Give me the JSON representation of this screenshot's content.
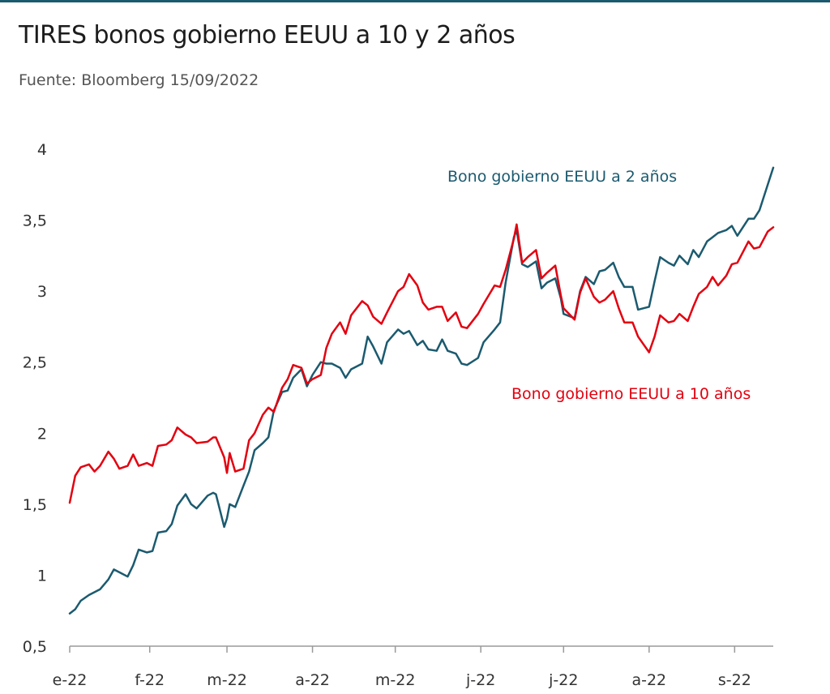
{
  "title": "TIRES bonos gobierno EEUU a 10 y 2 años",
  "subtitle": "Fuente: Bloomberg 15/09/2022",
  "colors": {
    "accent": "#1b5a6f",
    "bond2": "#1b5a6f",
    "bond10": "#e3000f"
  },
  "chart_data": {
    "type": "line",
    "title": "TIRES bonos gobierno EEUU a 10 y 2 años",
    "xlabel": "",
    "ylabel": "",
    "ylim": [
      0.5,
      4
    ],
    "xlim": [
      "2022-01-03",
      "2022-09-15"
    ],
    "grid": false,
    "legend": "inline labels",
    "x_ticks": [
      {
        "date": "2022-01-03",
        "label": "e-22"
      },
      {
        "date": "2022-02-01",
        "label": "f-22"
      },
      {
        "date": "2022-03-01",
        "label": "m-22"
      },
      {
        "date": "2022-04-01",
        "label": "a-22"
      },
      {
        "date": "2022-05-01",
        "label": "m-22"
      },
      {
        "date": "2022-06-01",
        "label": "j-22"
      },
      {
        "date": "2022-07-01",
        "label": "j-22"
      },
      {
        "date": "2022-08-01",
        "label": "a-22"
      },
      {
        "date": "2022-09-01",
        "label": "s-22"
      }
    ],
    "y_ticks": [
      {
        "value": 0.5,
        "label": "0,5"
      },
      {
        "value": 1,
        "label": "1"
      },
      {
        "value": 1.5,
        "label": "1,5"
      },
      {
        "value": 2,
        "label": "2"
      },
      {
        "value": 2.5,
        "label": "2,5"
      },
      {
        "value": 3,
        "label": "3"
      },
      {
        "value": 3.5,
        "label": "3,5"
      },
      {
        "value": 4,
        "label": "4"
      }
    ],
    "series": [
      {
        "name": "Bono gobierno EEUU a 2 años",
        "color": "#1b5a6f",
        "points": [
          [
            "2022-01-03",
            0.73
          ],
          [
            "2022-01-05",
            0.76
          ],
          [
            "2022-01-07",
            0.82
          ],
          [
            "2022-01-10",
            0.86
          ],
          [
            "2022-01-12",
            0.88
          ],
          [
            "2022-01-14",
            0.9
          ],
          [
            "2022-01-17",
            0.97
          ],
          [
            "2022-01-19",
            1.04
          ],
          [
            "2022-01-21",
            1.02
          ],
          [
            "2022-01-24",
            0.99
          ],
          [
            "2022-01-26",
            1.07
          ],
          [
            "2022-01-28",
            1.18
          ],
          [
            "2022-01-31",
            1.16
          ],
          [
            "2022-02-02",
            1.17
          ],
          [
            "2022-02-04",
            1.3
          ],
          [
            "2022-02-07",
            1.31
          ],
          [
            "2022-02-09",
            1.36
          ],
          [
            "2022-02-11",
            1.49
          ],
          [
            "2022-02-14",
            1.57
          ],
          [
            "2022-02-16",
            1.5
          ],
          [
            "2022-02-18",
            1.47
          ],
          [
            "2022-02-22",
            1.56
          ],
          [
            "2022-02-24",
            1.58
          ],
          [
            "2022-02-25",
            1.57
          ],
          [
            "2022-02-28",
            1.34
          ],
          [
            "2022-03-01",
            1.4
          ],
          [
            "2022-03-02",
            1.5
          ],
          [
            "2022-03-04",
            1.48
          ],
          [
            "2022-03-07",
            1.63
          ],
          [
            "2022-03-09",
            1.73
          ],
          [
            "2022-03-11",
            1.88
          ],
          [
            "2022-03-14",
            1.93
          ],
          [
            "2022-03-16",
            1.97
          ],
          [
            "2022-03-18",
            2.16
          ],
          [
            "2022-03-21",
            2.29
          ],
          [
            "2022-03-23",
            2.3
          ],
          [
            "2022-03-25",
            2.39
          ],
          [
            "2022-03-28",
            2.45
          ],
          [
            "2022-03-30",
            2.33
          ],
          [
            "2022-04-01",
            2.41
          ],
          [
            "2022-04-04",
            2.5
          ],
          [
            "2022-04-06",
            2.49
          ],
          [
            "2022-04-08",
            2.49
          ],
          [
            "2022-04-11",
            2.46
          ],
          [
            "2022-04-13",
            2.39
          ],
          [
            "2022-04-15",
            2.45
          ],
          [
            "2022-04-19",
            2.49
          ],
          [
            "2022-04-21",
            2.68
          ],
          [
            "2022-04-23",
            2.61
          ],
          [
            "2022-04-26",
            2.49
          ],
          [
            "2022-04-28",
            2.64
          ],
          [
            "2022-05-02",
            2.73
          ],
          [
            "2022-05-04",
            2.7
          ],
          [
            "2022-05-06",
            2.72
          ],
          [
            "2022-05-09",
            2.62
          ],
          [
            "2022-05-11",
            2.65
          ],
          [
            "2022-05-13",
            2.59
          ],
          [
            "2022-05-16",
            2.58
          ],
          [
            "2022-05-18",
            2.66
          ],
          [
            "2022-05-20",
            2.58
          ],
          [
            "2022-05-23",
            2.56
          ],
          [
            "2022-05-25",
            2.49
          ],
          [
            "2022-05-27",
            2.48
          ],
          [
            "2022-05-31",
            2.53
          ],
          [
            "2022-06-02",
            2.64
          ],
          [
            "2022-06-06",
            2.73
          ],
          [
            "2022-06-08",
            2.78
          ],
          [
            "2022-06-10",
            3.06
          ],
          [
            "2022-06-13",
            3.38
          ],
          [
            "2022-06-14",
            3.43
          ],
          [
            "2022-06-16",
            3.19
          ],
          [
            "2022-06-18",
            3.17
          ],
          [
            "2022-06-21",
            3.21
          ],
          [
            "2022-06-23",
            3.02
          ],
          [
            "2022-06-25",
            3.06
          ],
          [
            "2022-06-28",
            3.09
          ],
          [
            "2022-06-30",
            2.95
          ],
          [
            "2022-07-01",
            2.84
          ],
          [
            "2022-07-05",
            2.81
          ],
          [
            "2022-07-07",
            3.0
          ],
          [
            "2022-07-09",
            3.1
          ],
          [
            "2022-07-12",
            3.05
          ],
          [
            "2022-07-14",
            3.14
          ],
          [
            "2022-07-16",
            3.15
          ],
          [
            "2022-07-19",
            3.2
          ],
          [
            "2022-07-21",
            3.1
          ],
          [
            "2022-07-23",
            3.03
          ],
          [
            "2022-07-26",
            3.03
          ],
          [
            "2022-07-28",
            2.87
          ],
          [
            "2022-08-01",
            2.89
          ],
          [
            "2022-08-03",
            3.07
          ],
          [
            "2022-08-05",
            3.24
          ],
          [
            "2022-08-08",
            3.2
          ],
          [
            "2022-08-10",
            3.18
          ],
          [
            "2022-08-12",
            3.25
          ],
          [
            "2022-08-15",
            3.19
          ],
          [
            "2022-08-17",
            3.29
          ],
          [
            "2022-08-19",
            3.24
          ],
          [
            "2022-08-22",
            3.35
          ],
          [
            "2022-08-24",
            3.38
          ],
          [
            "2022-08-26",
            3.41
          ],
          [
            "2022-08-29",
            3.43
          ],
          [
            "2022-08-31",
            3.46
          ],
          [
            "2022-09-02",
            3.39
          ],
          [
            "2022-09-06",
            3.51
          ],
          [
            "2022-09-08",
            3.51
          ],
          [
            "2022-09-10",
            3.57
          ],
          [
            "2022-09-13",
            3.75
          ],
          [
            "2022-09-15",
            3.87
          ]
        ]
      },
      {
        "name": "Bono gobierno EEUU a 10 años",
        "color": "#e3000f",
        "points": [
          [
            "2022-01-03",
            1.51
          ],
          [
            "2022-01-05",
            1.7
          ],
          [
            "2022-01-07",
            1.76
          ],
          [
            "2022-01-10",
            1.78
          ],
          [
            "2022-01-12",
            1.73
          ],
          [
            "2022-01-14",
            1.77
          ],
          [
            "2022-01-17",
            1.87
          ],
          [
            "2022-01-19",
            1.82
          ],
          [
            "2022-01-21",
            1.75
          ],
          [
            "2022-01-24",
            1.77
          ],
          [
            "2022-01-26",
            1.85
          ],
          [
            "2022-01-28",
            1.77
          ],
          [
            "2022-01-31",
            1.79
          ],
          [
            "2022-02-02",
            1.77
          ],
          [
            "2022-02-04",
            1.91
          ],
          [
            "2022-02-07",
            1.92
          ],
          [
            "2022-02-09",
            1.95
          ],
          [
            "2022-02-11",
            2.04
          ],
          [
            "2022-02-14",
            1.99
          ],
          [
            "2022-02-16",
            1.97
          ],
          [
            "2022-02-18",
            1.93
          ],
          [
            "2022-02-22",
            1.94
          ],
          [
            "2022-02-24",
            1.97
          ],
          [
            "2022-02-25",
            1.97
          ],
          [
            "2022-02-28",
            1.83
          ],
          [
            "2022-03-01",
            1.72
          ],
          [
            "2022-03-02",
            1.86
          ],
          [
            "2022-03-04",
            1.73
          ],
          [
            "2022-03-07",
            1.75
          ],
          [
            "2022-03-09",
            1.95
          ],
          [
            "2022-03-11",
            2.0
          ],
          [
            "2022-03-14",
            2.13
          ],
          [
            "2022-03-16",
            2.18
          ],
          [
            "2022-03-18",
            2.15
          ],
          [
            "2022-03-21",
            2.32
          ],
          [
            "2022-03-23",
            2.38
          ],
          [
            "2022-03-25",
            2.48
          ],
          [
            "2022-03-28",
            2.46
          ],
          [
            "2022-03-30",
            2.35
          ],
          [
            "2022-04-01",
            2.38
          ],
          [
            "2022-04-04",
            2.41
          ],
          [
            "2022-04-06",
            2.6
          ],
          [
            "2022-04-08",
            2.7
          ],
          [
            "2022-04-11",
            2.78
          ],
          [
            "2022-04-13",
            2.7
          ],
          [
            "2022-04-15",
            2.83
          ],
          [
            "2022-04-19",
            2.93
          ],
          [
            "2022-04-21",
            2.9
          ],
          [
            "2022-04-23",
            2.82
          ],
          [
            "2022-04-26",
            2.77
          ],
          [
            "2022-04-28",
            2.85
          ],
          [
            "2022-05-02",
            3.0
          ],
          [
            "2022-05-04",
            3.03
          ],
          [
            "2022-05-06",
            3.12
          ],
          [
            "2022-05-09",
            3.04
          ],
          [
            "2022-05-11",
            2.92
          ],
          [
            "2022-05-13",
            2.87
          ],
          [
            "2022-05-16",
            2.89
          ],
          [
            "2022-05-18",
            2.89
          ],
          [
            "2022-05-20",
            2.79
          ],
          [
            "2022-05-23",
            2.85
          ],
          [
            "2022-05-25",
            2.75
          ],
          [
            "2022-05-27",
            2.74
          ],
          [
            "2022-05-31",
            2.84
          ],
          [
            "2022-06-02",
            2.91
          ],
          [
            "2022-06-06",
            3.04
          ],
          [
            "2022-06-08",
            3.03
          ],
          [
            "2022-06-10",
            3.15
          ],
          [
            "2022-06-13",
            3.37
          ],
          [
            "2022-06-14",
            3.47
          ],
          [
            "2022-06-16",
            3.2
          ],
          [
            "2022-06-18",
            3.24
          ],
          [
            "2022-06-21",
            3.29
          ],
          [
            "2022-06-23",
            3.09
          ],
          [
            "2022-06-25",
            3.13
          ],
          [
            "2022-06-28",
            3.18
          ],
          [
            "2022-06-30",
            2.97
          ],
          [
            "2022-07-01",
            2.88
          ],
          [
            "2022-07-05",
            2.8
          ],
          [
            "2022-07-07",
            2.99
          ],
          [
            "2022-07-09",
            3.09
          ],
          [
            "2022-07-12",
            2.96
          ],
          [
            "2022-07-14",
            2.92
          ],
          [
            "2022-07-16",
            2.94
          ],
          [
            "2022-07-19",
            3.0
          ],
          [
            "2022-07-21",
            2.88
          ],
          [
            "2022-07-23",
            2.78
          ],
          [
            "2022-07-26",
            2.78
          ],
          [
            "2022-07-28",
            2.68
          ],
          [
            "2022-08-01",
            2.57
          ],
          [
            "2022-08-03",
            2.68
          ],
          [
            "2022-08-05",
            2.83
          ],
          [
            "2022-08-08",
            2.78
          ],
          [
            "2022-08-10",
            2.79
          ],
          [
            "2022-08-12",
            2.84
          ],
          [
            "2022-08-15",
            2.79
          ],
          [
            "2022-08-17",
            2.89
          ],
          [
            "2022-08-19",
            2.98
          ],
          [
            "2022-08-22",
            3.03
          ],
          [
            "2022-08-24",
            3.1
          ],
          [
            "2022-08-26",
            3.04
          ],
          [
            "2022-08-29",
            3.11
          ],
          [
            "2022-08-31",
            3.19
          ],
          [
            "2022-09-02",
            3.2
          ],
          [
            "2022-09-06",
            3.35
          ],
          [
            "2022-09-08",
            3.3
          ],
          [
            "2022-09-10",
            3.31
          ],
          [
            "2022-09-13",
            3.42
          ],
          [
            "2022-09-15",
            3.45
          ]
        ]
      }
    ]
  }
}
